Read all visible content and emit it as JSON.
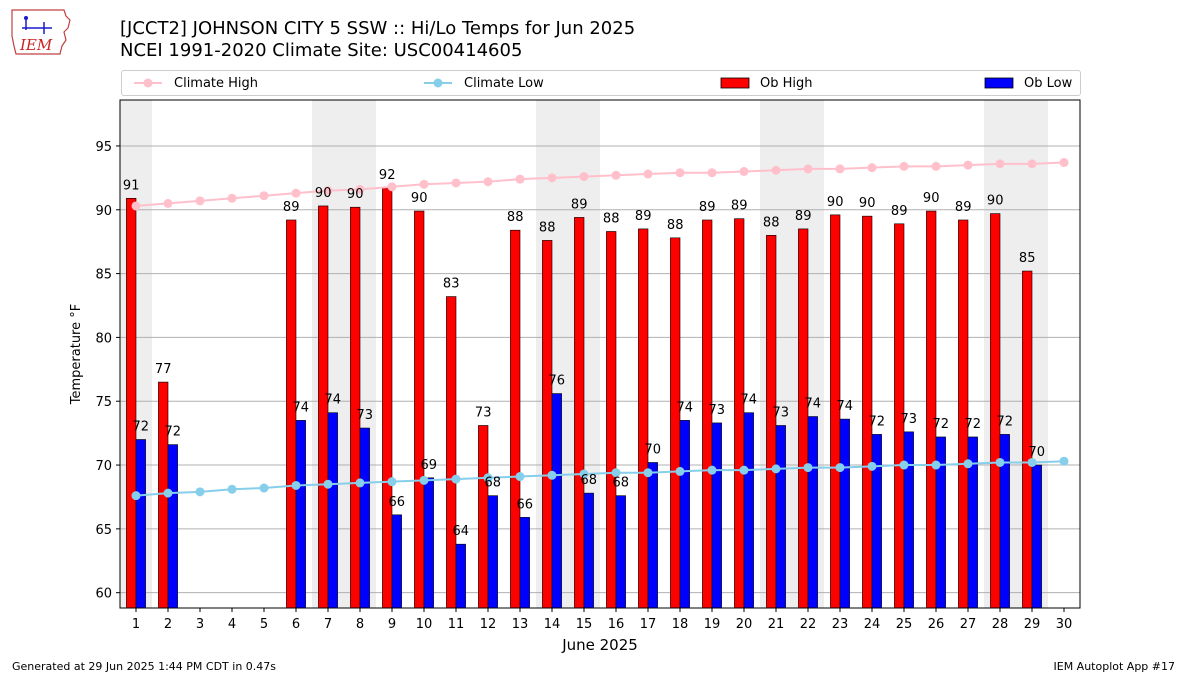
{
  "header": {
    "title_line1": "[JCCT2] JOHNSON CITY 5 SSW :: Hi/Lo Temps for Jun 2025",
    "title_line2": "NCEI 1991-2020 Climate Site: USC00414605"
  },
  "logo": {
    "text": "IEM"
  },
  "footer": {
    "left": "Generated at 29 Jun 2025 1:44 PM CDT in 0.47s",
    "right": "IEM Autoplot App #17"
  },
  "colors": {
    "ob_high": "#ff0000",
    "ob_low": "#0000ff",
    "climate_high": "#ffc0cb",
    "climate_low": "#87ceeb",
    "weekend_band": "#eeeeee",
    "grid": "#b0b0b0"
  },
  "chart_data": {
    "type": "bar",
    "xlabel": "June 2025",
    "ylabel": "Temperature °F",
    "xlim": [
      0.5,
      30.5
    ],
    "ylim": [
      58.8,
      98.6
    ],
    "yticks": [
      60,
      65,
      70,
      75,
      80,
      85,
      90,
      95
    ],
    "grid": "y",
    "legend_placement": "top",
    "categories": [
      1,
      2,
      3,
      4,
      5,
      6,
      7,
      8,
      9,
      10,
      11,
      12,
      13,
      14,
      15,
      16,
      17,
      18,
      19,
      20,
      21,
      22,
      23,
      24,
      25,
      26,
      27,
      28,
      29,
      30
    ],
    "weekend_bands": [
      [
        0.5,
        1.5
      ],
      [
        6.5,
        8.5
      ],
      [
        13.5,
        15.5
      ],
      [
        20.5,
        22.5
      ],
      [
        27.5,
        29.5
      ]
    ],
    "series": [
      {
        "name": "Ob High",
        "kind": "bar",
        "values": [
          90.9,
          76.5,
          null,
          null,
          null,
          89.2,
          90.3,
          90.2,
          91.7,
          89.9,
          83.2,
          73.1,
          88.4,
          87.6,
          89.4,
          88.3,
          88.5,
          87.8,
          89.2,
          89.3,
          88.0,
          88.5,
          89.6,
          89.5,
          88.9,
          89.9,
          89.2,
          89.7,
          85.2,
          null
        ],
        "labels": [
          "91",
          "77",
          "",
          "",
          "",
          "89",
          "90",
          "90",
          "92",
          "90",
          "83",
          "73",
          "88",
          "88",
          "89",
          "88",
          "89",
          "88",
          "89",
          "89",
          "88",
          "89",
          "90",
          "90",
          "89",
          "90",
          "89",
          "90",
          "85",
          ""
        ]
      },
      {
        "name": "Ob Low",
        "kind": "bar",
        "values": [
          72.0,
          71.6,
          null,
          null,
          null,
          73.5,
          74.1,
          72.9,
          66.1,
          69.0,
          63.8,
          67.6,
          65.9,
          75.6,
          67.8,
          67.6,
          70.2,
          73.5,
          73.3,
          74.1,
          73.1,
          73.8,
          73.6,
          72.4,
          72.6,
          72.2,
          72.2,
          72.4,
          70.0,
          null
        ],
        "labels": [
          "72",
          "72",
          "",
          "",
          "",
          "74",
          "74",
          "73",
          "66",
          "69",
          "64",
          "68",
          "66",
          "76",
          "68",
          "68",
          "70",
          "74",
          "73",
          "74",
          "73",
          "74",
          "74",
          "72",
          "73",
          "72",
          "72",
          "72",
          "70",
          ""
        ]
      },
      {
        "name": "Climate High",
        "kind": "line",
        "values": [
          90.3,
          90.5,
          90.7,
          90.9,
          91.1,
          91.3,
          91.5,
          91.6,
          91.8,
          92.0,
          92.1,
          92.2,
          92.4,
          92.5,
          92.6,
          92.7,
          92.8,
          92.9,
          92.9,
          93.0,
          93.1,
          93.2,
          93.2,
          93.3,
          93.4,
          93.4,
          93.5,
          93.6,
          93.6,
          93.7
        ]
      },
      {
        "name": "Climate Low",
        "kind": "line",
        "values": [
          67.6,
          67.8,
          67.9,
          68.1,
          68.2,
          68.4,
          68.5,
          68.6,
          68.7,
          68.8,
          68.9,
          69.0,
          69.1,
          69.2,
          69.3,
          69.4,
          69.4,
          69.5,
          69.6,
          69.6,
          69.7,
          69.8,
          69.8,
          69.9,
          70.0,
          70.0,
          70.1,
          70.2,
          70.2,
          70.3
        ]
      }
    ]
  }
}
